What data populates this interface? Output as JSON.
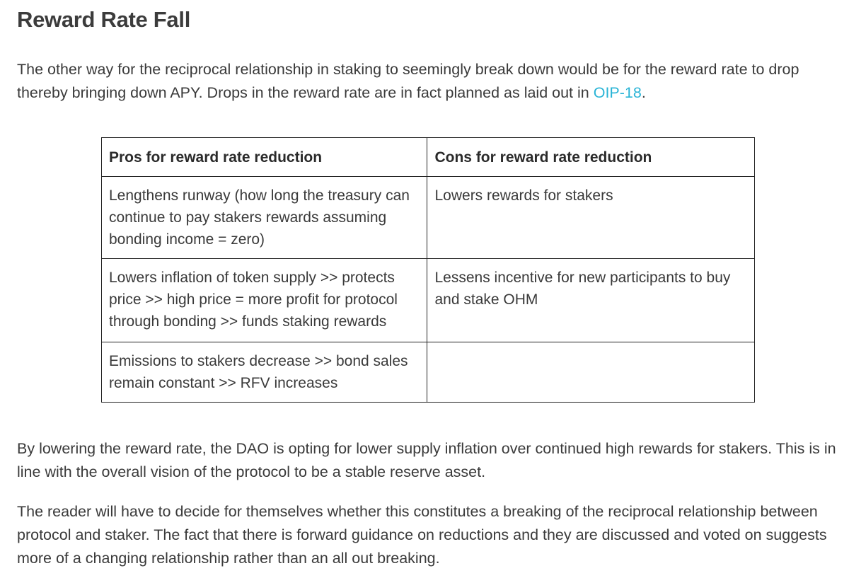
{
  "heading": "Reward Rate Fall",
  "intro": {
    "text_before_link": "The other way for the reciprocal relationship in staking to seemingly break down would be for the reward rate to drop thereby bringing down APY. Drops in the reward rate are in fact planned as laid out in ",
    "link_text": "OIP-18",
    "text_after_link": "."
  },
  "table": {
    "headers": [
      "Pros for reward rate reduction",
      "Cons for reward rate reduction"
    ],
    "rows": [
      [
        "Lengthens runway (how long the treasury can continue to pay stakers rewards assuming bonding income = zero)",
        "Lowers rewards for stakers"
      ],
      [
        "Lowers inflation of token supply >> protects price >> high price = more profit for protocol through bonding >> funds staking rewards",
        "Lessens incentive for new participants to buy and stake OHM"
      ],
      [
        "Emissions to stakers decrease >>  bond sales remain constant >> RFV increases",
        ""
      ]
    ]
  },
  "paragraphs": [
    "By lowering the reward rate, the DAO is opting for lower supply inflation over continued high rewards for stakers. This is in line with the overall vision of the protocol to be a stable reserve asset.",
    "The reader will have to decide for themselves whether this constitutes a breaking of the reciprocal relationship between protocol and staker. The fact that there is forward guidance on reductions and they are discussed and voted on suggests more of a changing relationship rather than an all out breaking."
  ],
  "colors": {
    "link": "#2ab4d6",
    "text": "#3a3a3a",
    "border": "#222222"
  }
}
